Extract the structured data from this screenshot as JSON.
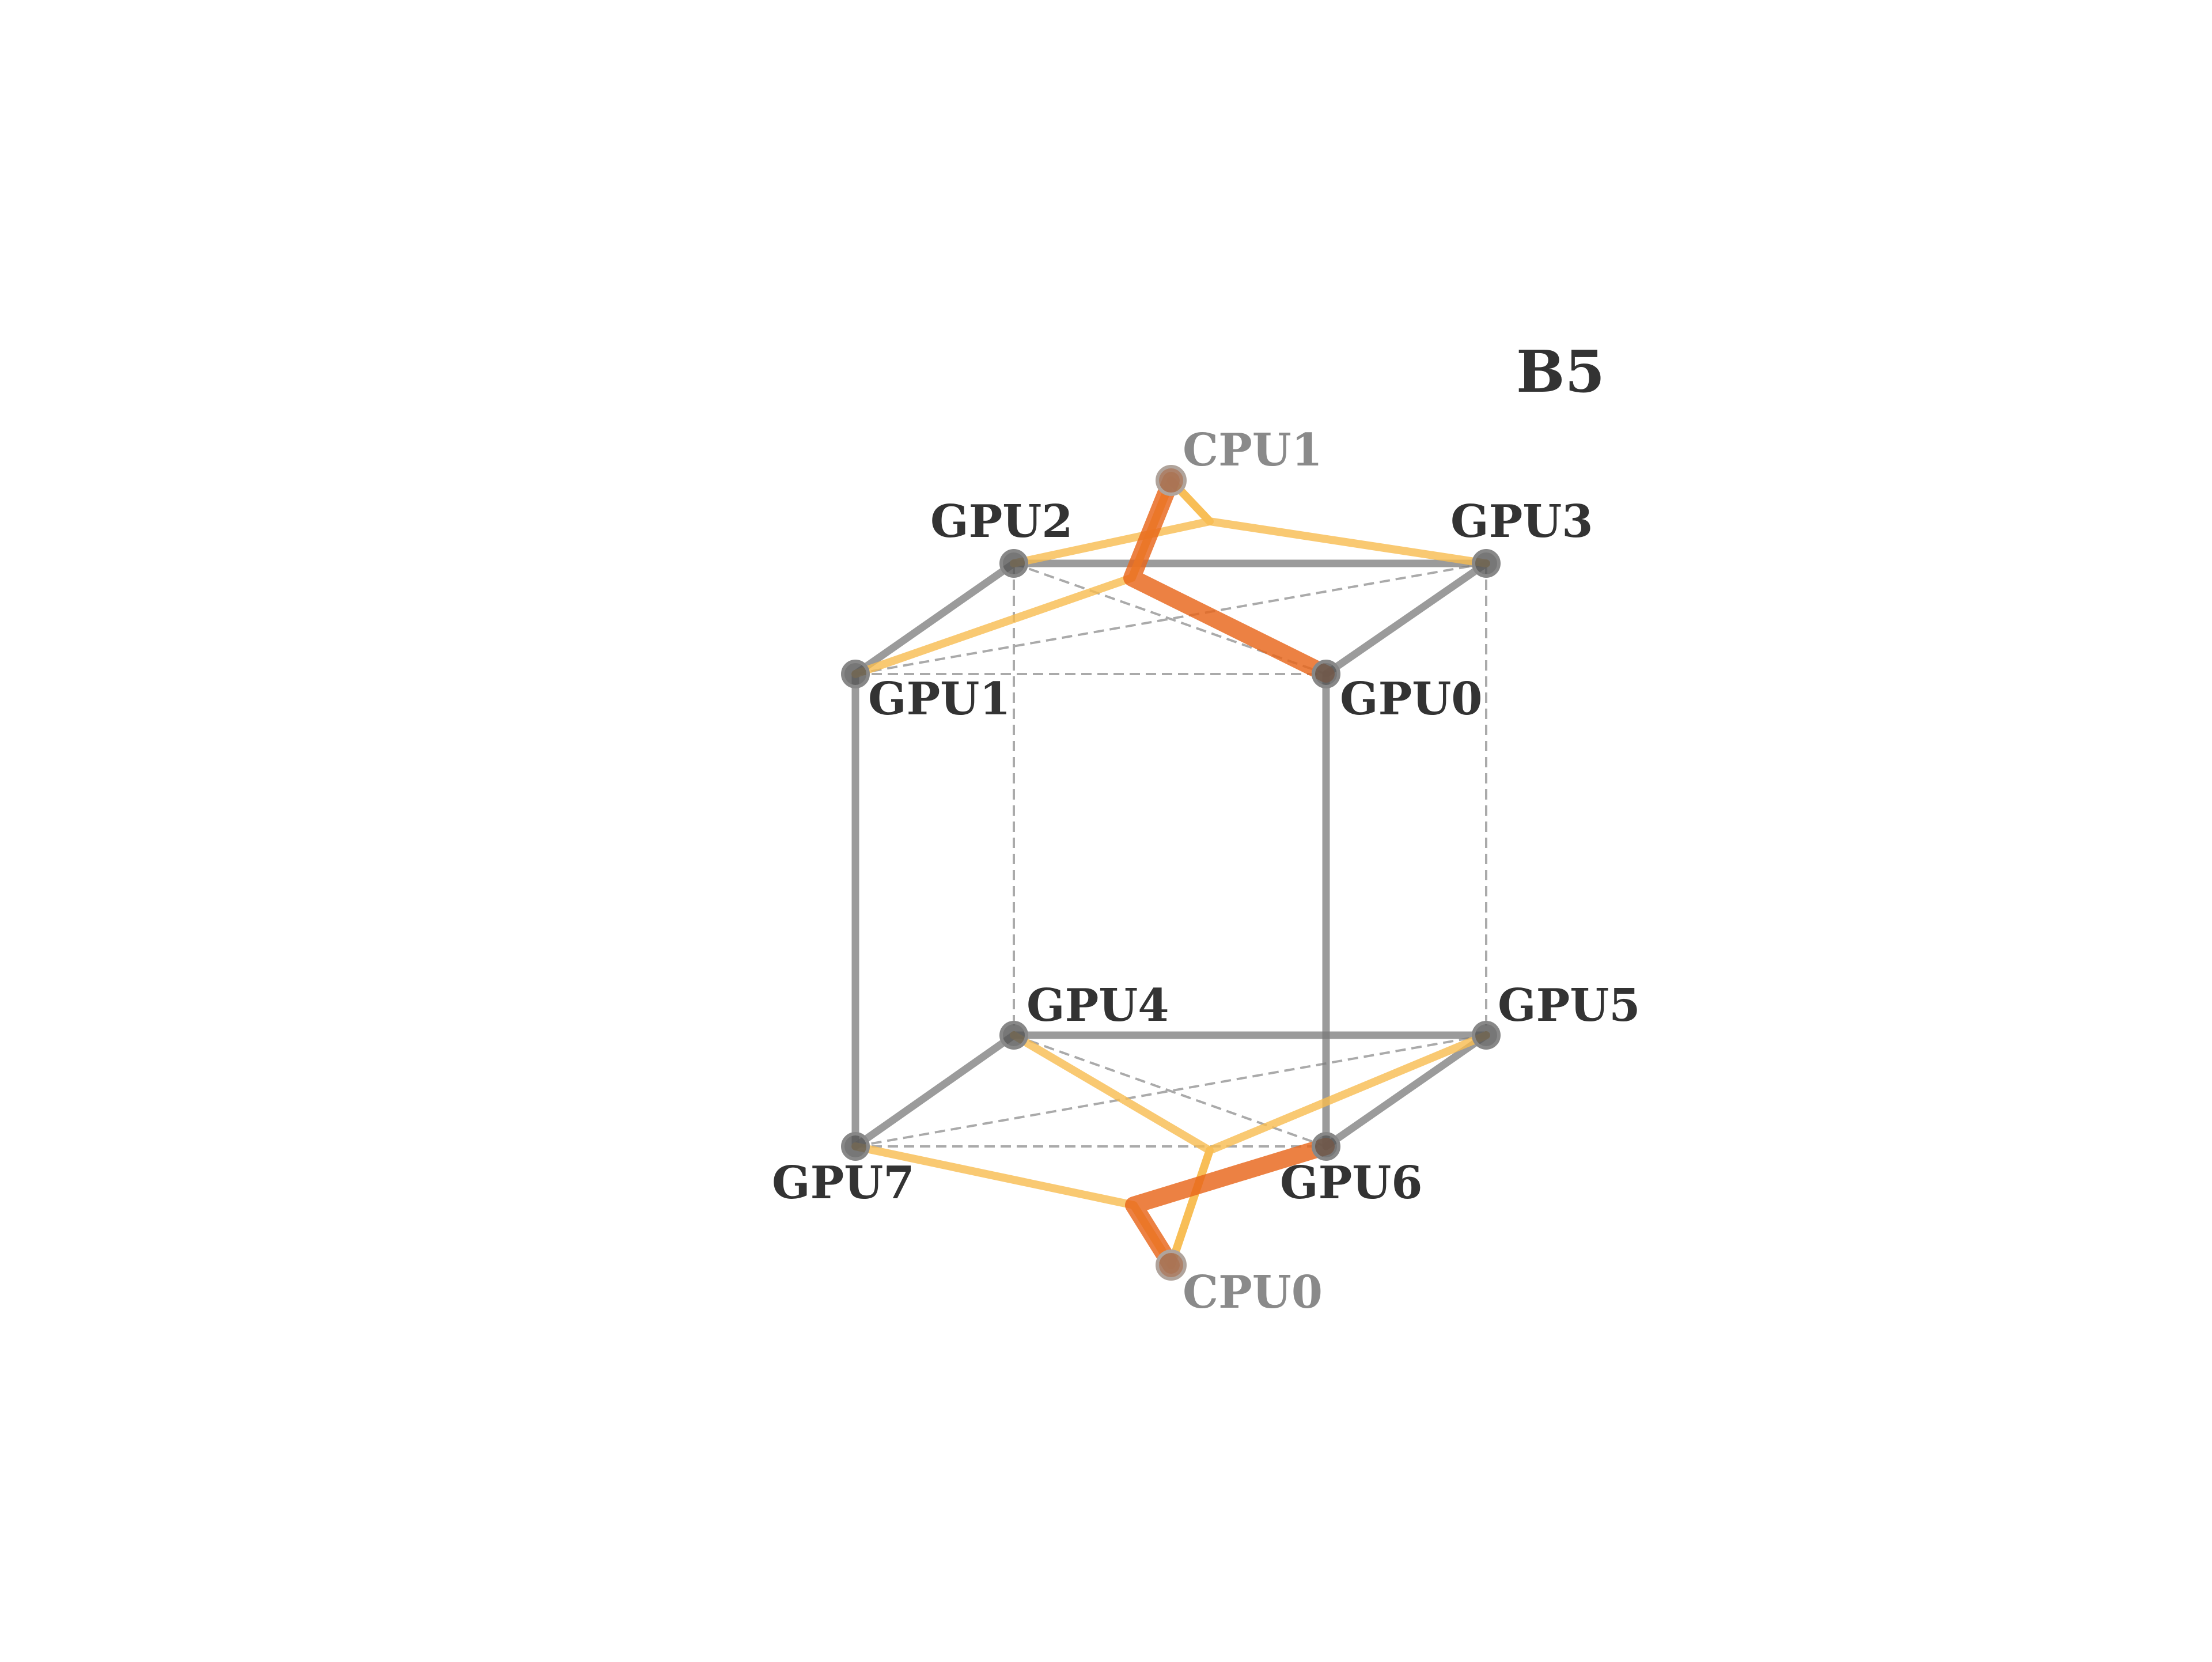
{
  "diagram": {
    "title": "B5",
    "nodes": [
      {
        "id": "GPU0",
        "label": "GPU0",
        "kind": "gpu"
      },
      {
        "id": "GPU1",
        "label": "GPU1",
        "kind": "gpu"
      },
      {
        "id": "GPU2",
        "label": "GPU2",
        "kind": "gpu"
      },
      {
        "id": "GPU3",
        "label": "GPU3",
        "kind": "gpu"
      },
      {
        "id": "GPU4",
        "label": "GPU4",
        "kind": "gpu"
      },
      {
        "id": "GPU5",
        "label": "GPU5",
        "kind": "gpu"
      },
      {
        "id": "GPU6",
        "label": "GPU6",
        "kind": "gpu"
      },
      {
        "id": "GPU7",
        "label": "GPU7",
        "kind": "gpu"
      },
      {
        "id": "CPU0",
        "label": "CPU0",
        "kind": "cpu"
      },
      {
        "id": "CPU1",
        "label": "CPU1",
        "kind": "cpu"
      }
    ],
    "links": {
      "solid": [
        [
          "GPU2",
          "GPU3"
        ],
        [
          "GPU2",
          "GPU1"
        ],
        [
          "GPU3",
          "GPU0"
        ],
        [
          "GPU1",
          "GPU7"
        ],
        [
          "GPU0",
          "GPU6"
        ],
        [
          "GPU4",
          "GPU5"
        ],
        [
          "GPU4",
          "GPU7"
        ],
        [
          "GPU5",
          "GPU6"
        ]
      ],
      "dashed": [
        [
          "GPU1",
          "GPU0"
        ],
        [
          "GPU2",
          "GPU0"
        ],
        [
          "GPU1",
          "GPU3"
        ],
        [
          "GPU2",
          "GPU4"
        ],
        [
          "GPU3",
          "GPU5"
        ],
        [
          "GPU7",
          "GPU6"
        ],
        [
          "GPU4",
          "GPU6"
        ],
        [
          "GPU7",
          "GPU5"
        ]
      ],
      "cpu_primary": [
        [
          "CPU1",
          "GPU0"
        ],
        [
          "CPU0",
          "GPU6"
        ]
      ],
      "cpu_secondary": [
        [
          "CPU1",
          "GPU1"
        ],
        [
          "CPU1",
          "GPU2"
        ],
        [
          "CPU1",
          "GPU3"
        ],
        [
          "CPU0",
          "GPU7"
        ],
        [
          "CPU0",
          "GPU4"
        ],
        [
          "CPU0",
          "GPU5"
        ]
      ]
    },
    "colors": {
      "solid_edge": "#7a7a7a",
      "dashed_edge": "#aaaaaa",
      "cpu_primary": "#e8651a",
      "cpu_secondary": "#f8bb4f",
      "gpu_node": "#555555",
      "cpu_node": "#a4745a",
      "gpu_label": "#333333",
      "cpu_label": "#8a8a8a",
      "title": "#333333"
    }
  }
}
